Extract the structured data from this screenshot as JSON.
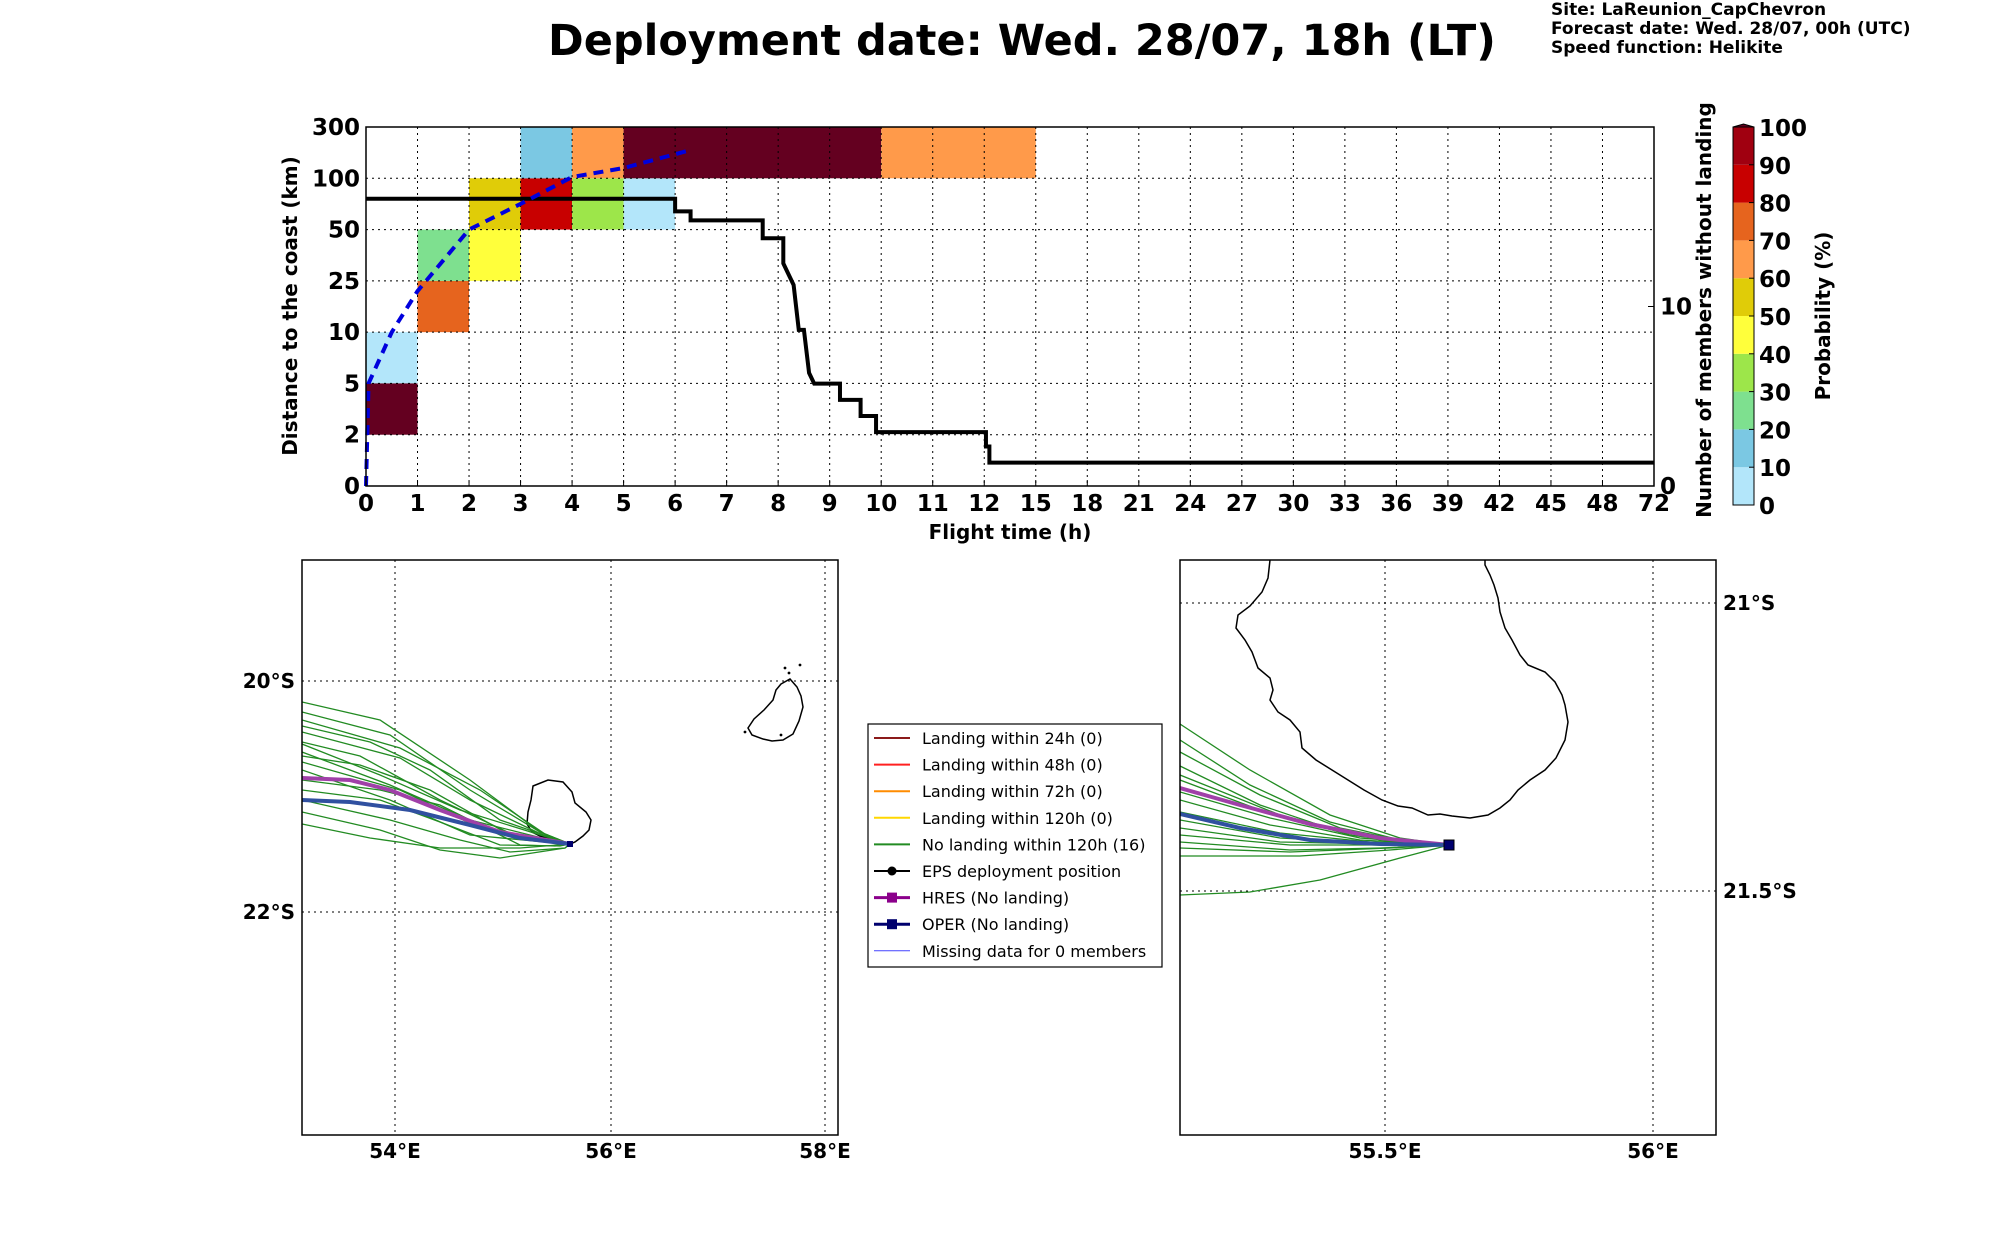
{
  "header": {
    "title": "Deployment date: Wed. 28/07, 18h (LT)",
    "site": "Site: LaReunion_CapChevron",
    "forecast": "Forecast date: Wed. 28/07, 00h (UTC)",
    "speed": "Speed function: Helikite"
  },
  "chart_data": [
    {
      "type": "heatmap",
      "xlabel": "Flight time (h)",
      "ylabel": "Distance to the coast (km)",
      "y2label": "Number of members without landing",
      "x_ticks": [
        "0",
        "1",
        "2",
        "3",
        "4",
        "5",
        "6",
        "7",
        "8",
        "9",
        "10",
        "11",
        "12",
        "15",
        "18",
        "21",
        "24",
        "27",
        "30",
        "33",
        "36",
        "39",
        "42",
        "45",
        "48",
        "72"
      ],
      "y_ticks": [
        "0",
        "2",
        "5",
        "10",
        "25",
        "50",
        "100",
        "300"
      ],
      "y2_ticks": [
        "0",
        "10"
      ],
      "colorbar": {
        "label": "Probability (%)",
        "ticks": [
          "0",
          "10",
          "20",
          "30",
          "40",
          "50",
          "60",
          "70",
          "80",
          "90",
          "100"
        ],
        "colors": [
          "#b3e6fa",
          "#7bc8e3",
          "#7ee08f",
          "#9de64a",
          "#ffff3b",
          "#e0cc08",
          "#ff9a4a",
          "#e6641e",
          "#c80000",
          "#a00010",
          "#640020"
        ]
      },
      "cells": [
        {
          "x": [
            0,
            1
          ],
          "y": [
            "5",
            "10"
          ],
          "color": "#b3e6fa"
        },
        {
          "x": [
            0,
            1
          ],
          "y": [
            "2",
            "5"
          ],
          "color": "#640020"
        },
        {
          "x": [
            1,
            2
          ],
          "y": [
            "10",
            "25"
          ],
          "color": "#e6641e"
        },
        {
          "x": [
            1,
            2
          ],
          "y": [
            "25",
            "50"
          ],
          "color": "#7ee08f"
        },
        {
          "x": [
            2,
            3
          ],
          "y": [
            "25",
            "50"
          ],
          "color": "#ffff3b"
        },
        {
          "x": [
            2,
            3
          ],
          "y": [
            "50",
            "100"
          ],
          "color": "#e0cc08"
        },
        {
          "x": [
            3,
            4
          ],
          "y": [
            "50",
            "100"
          ],
          "color": "#c80000"
        },
        {
          "x": [
            3,
            4
          ],
          "y": [
            "100",
            "300"
          ],
          "color": "#7bc8e3"
        },
        {
          "x": [
            4,
            5
          ],
          "y": [
            "50",
            "100"
          ],
          "color": "#9de64a"
        },
        {
          "x": [
            4,
            5
          ],
          "y": [
            "100",
            "300"
          ],
          "color": "#ff9a4a"
        },
        {
          "x": [
            5,
            6
          ],
          "y": [
            "50",
            "100"
          ],
          "color": "#b3e6fa"
        },
        {
          "x": [
            5,
            10
          ],
          "y": [
            "100",
            "300"
          ],
          "color": "#640020"
        },
        {
          "x": [
            10,
            15
          ],
          "y": [
            "100",
            "300"
          ],
          "color": "#ff9a4a"
        }
      ],
      "members_without_landing": [
        {
          "x": 0,
          "y": 16
        },
        {
          "x": 6,
          "y": 16
        },
        {
          "x": 6,
          "y": 15.3
        },
        {
          "x": 6.3,
          "y": 15.3
        },
        {
          "x": 6.3,
          "y": 14.8
        },
        {
          "x": 7.7,
          "y": 14.8
        },
        {
          "x": 7.7,
          "y": 13.8
        },
        {
          "x": 8.1,
          "y": 13.8
        },
        {
          "x": 8.1,
          "y": 12.4
        },
        {
          "x": 8.3,
          "y": 11.2
        },
        {
          "x": 8.4,
          "y": 8.7
        },
        {
          "x": 8.5,
          "y": 8.7
        },
        {
          "x": 8.6,
          "y": 6.3
        },
        {
          "x": 8.7,
          "y": 5.7
        },
        {
          "x": 9.2,
          "y": 5.7
        },
        {
          "x": 9.2,
          "y": 4.8
        },
        {
          "x": 9.6,
          "y": 4.8
        },
        {
          "x": 9.6,
          "y": 3.9
        },
        {
          "x": 9.9,
          "y": 3.9
        },
        {
          "x": 9.9,
          "y": 3
        },
        {
          "x": 12.1,
          "y": 3
        },
        {
          "x": 12.1,
          "y": 2.2
        },
        {
          "x": 12.3,
          "y": 2.2
        },
        {
          "x": 12.3,
          "y": 1.3
        },
        {
          "x": 72,
          "y": 1.3
        }
      ],
      "mean_distance_curve": [
        {
          "x": 0,
          "y": "0"
        },
        {
          "x": 0.05,
          "y": "5"
        },
        {
          "x": 0.5,
          "y": "10"
        },
        {
          "x": 1,
          "y": "22"
        },
        {
          "x": 2,
          "y": "50"
        },
        {
          "x": 3,
          "y": "75"
        },
        {
          "x": 4,
          "y": "105"
        },
        {
          "x": 5,
          "y": "140"
        },
        {
          "x": 6.3,
          "y": "210"
        }
      ]
    },
    {
      "type": "map",
      "name": "overview-map",
      "x_ticks": [
        "54°E",
        "56°E",
        "58°E"
      ],
      "y_ticks": [
        "20°S",
        "22°S"
      ]
    },
    {
      "type": "map",
      "name": "zoom-map",
      "x_ticks": [
        "55.5°E",
        "56°E"
      ],
      "y_ticks": [
        "21°S",
        "21.5°S"
      ]
    }
  ],
  "legend": {
    "items": [
      {
        "label": "Landing within 24h (0)",
        "color": "#8b1a1a",
        "marker": "none",
        "width": 2
      },
      {
        "label": "Landing within 48h (0)",
        "color": "#ff2020",
        "marker": "none",
        "width": 2
      },
      {
        "label": "Landing within 72h (0)",
        "color": "#ff8c00",
        "marker": "none",
        "width": 2
      },
      {
        "label": "Landing within 120h (0)",
        "color": "#ffd700",
        "marker": "none",
        "width": 2
      },
      {
        "label": "No landing within 120h (16)",
        "color": "#228b22",
        "marker": "none",
        "width": 2
      },
      {
        "label": "EPS deployment position",
        "color": "#000000",
        "marker": "circle",
        "width": 2
      },
      {
        "label": "HRES (No landing)",
        "color": "#8b008b",
        "marker": "square",
        "width": 3
      },
      {
        "label": "OPER (No landing)",
        "color": "#00006e",
        "marker": "square",
        "width": 3
      },
      {
        "label": "Missing data for 0 members",
        "color": "#4444ff",
        "marker": "none",
        "width": 1
      }
    ]
  }
}
